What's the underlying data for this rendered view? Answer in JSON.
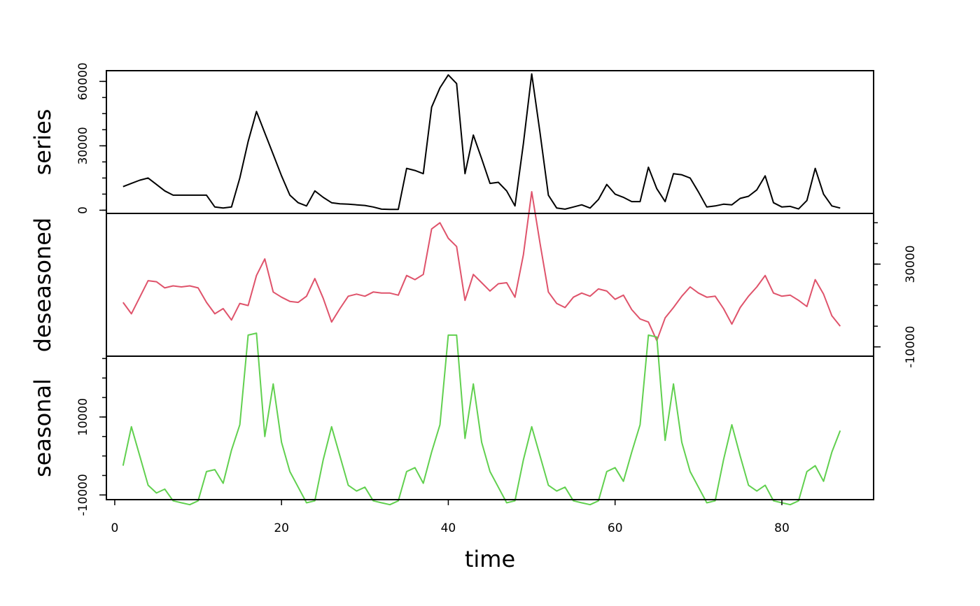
{
  "chart_data": {
    "type": "line",
    "x_label": "time",
    "x_range": [
      -1,
      91
    ],
    "x_ticks": [
      0,
      20,
      40,
      60,
      80
    ],
    "x": [
      1,
      2,
      3,
      4,
      5,
      6,
      7,
      8,
      9,
      10,
      11,
      12,
      13,
      14,
      15,
      16,
      17,
      18,
      19,
      20,
      21,
      22,
      23,
      24,
      25,
      26,
      27,
      28,
      29,
      30,
      31,
      32,
      33,
      34,
      35,
      36,
      37,
      38,
      39,
      40,
      41,
      42,
      43,
      44,
      45,
      46,
      47,
      48,
      49,
      50,
      51,
      52,
      53,
      54,
      55,
      56,
      57,
      58,
      59,
      60,
      61,
      62,
      63,
      64,
      65,
      66,
      67,
      68,
      69,
      70,
      71,
      72,
      73,
      74,
      75,
      76,
      77,
      78,
      79,
      80,
      81,
      82,
      83,
      84,
      85,
      86,
      87
    ],
    "panels": [
      {
        "name": "series",
        "color": "#000000",
        "ylim": [
          -1500,
          65000
        ],
        "y_ticks": [
          0,
          30000,
          60000
        ],
        "tick_side": "left",
        "values": [
          11000,
          12500,
          14000,
          15000,
          12000,
          9000,
          7000,
          7000,
          7000,
          7000,
          7000,
          1500,
          1000,
          1500,
          15000,
          32000,
          46000,
          36000,
          26000,
          16000,
          7000,
          3500,
          2000,
          9000,
          6000,
          3500,
          3000,
          2800,
          2500,
          2200,
          1500,
          500,
          400,
          400,
          19500,
          18500,
          17000,
          48000,
          57000,
          63000,
          59000,
          17000,
          35000,
          24000,
          12500,
          13000,
          9000,
          2000,
          31000,
          63500,
          36000,
          7000,
          1000,
          500,
          1500,
          2500,
          1000,
          5000,
          12000,
          7500,
          6000,
          4000,
          4000,
          20000,
          10000,
          4000,
          17000,
          16500,
          15000,
          8500,
          1500,
          2000,
          2800,
          2500,
          5500,
          6500,
          9500,
          16000,
          3500,
          1500,
          1800,
          600,
          4500,
          19500,
          7500,
          2000,
          1000
        ]
      },
      {
        "name": "deseasoned",
        "color": "#df536b",
        "ylim": [
          -14500,
          54500
        ],
        "y_ticks": [
          -10000,
          30000
        ],
        "tick_side": "right",
        "values": [
          11500,
          6000,
          14000,
          22000,
          21500,
          18500,
          19500,
          19000,
          19500,
          18500,
          11500,
          6000,
          8500,
          3000,
          11000,
          10000,
          24500,
          32500,
          16500,
          14000,
          12000,
          11500,
          14500,
          23000,
          13500,
          2000,
          8500,
          14500,
          15500,
          14500,
          16500,
          16000,
          16000,
          15000,
          24500,
          22500,
          25000,
          47000,
          50000,
          42500,
          38500,
          12500,
          25000,
          21000,
          17000,
          20500,
          21000,
          14000,
          34500,
          65000,
          40000,
          16500,
          11000,
          9000,
          14000,
          16000,
          14500,
          18000,
          17000,
          13000,
          15000,
          8000,
          3500,
          2000,
          -7000,
          4000,
          9000,
          14500,
          19000,
          16000,
          14000,
          14500,
          8500,
          1000,
          9000,
          14500,
          19000,
          24500,
          16000,
          14500,
          15000,
          12500,
          9500,
          22500,
          15500,
          5000,
          0
        ]
      },
      {
        "name": "seasonal",
        "color": "#61d04f",
        "ylim": [
          -11200,
          25600
        ],
        "y_ticks": [
          -10000,
          10000
        ],
        "tick_side": "left",
        "values": [
          -2500,
          7500,
          0,
          -7500,
          -9500,
          -8500,
          -11500,
          -12000,
          -12500,
          -11500,
          -4000,
          -3500,
          -7000,
          1500,
          8000,
          31000,
          31500,
          5000,
          18500,
          3500,
          -4000,
          -8000,
          -12000,
          -11500,
          -1000,
          7500,
          0,
          -7500,
          -9000,
          -8000,
          -11500,
          -12000,
          -12500,
          -11500,
          -4000,
          -3000,
          -7000,
          1000,
          8000,
          31000,
          31000,
          4500,
          18500,
          3500,
          -4000,
          -8000,
          -12000,
          -11500,
          -1000,
          7500,
          0,
          -7500,
          -9000,
          -8000,
          -11500,
          -12000,
          -12500,
          -11500,
          -4000,
          -3000,
          -6500,
          1000,
          8000,
          31000,
          30500,
          4000,
          18500,
          3500,
          -4000,
          -8000,
          -12000,
          -11500,
          -1000,
          8000,
          0,
          -7500,
          -9000,
          -7500,
          -11500,
          -12000,
          -12500,
          -11500,
          -4000,
          -2500,
          -6500,
          1000,
          6500
        ]
      }
    ]
  }
}
